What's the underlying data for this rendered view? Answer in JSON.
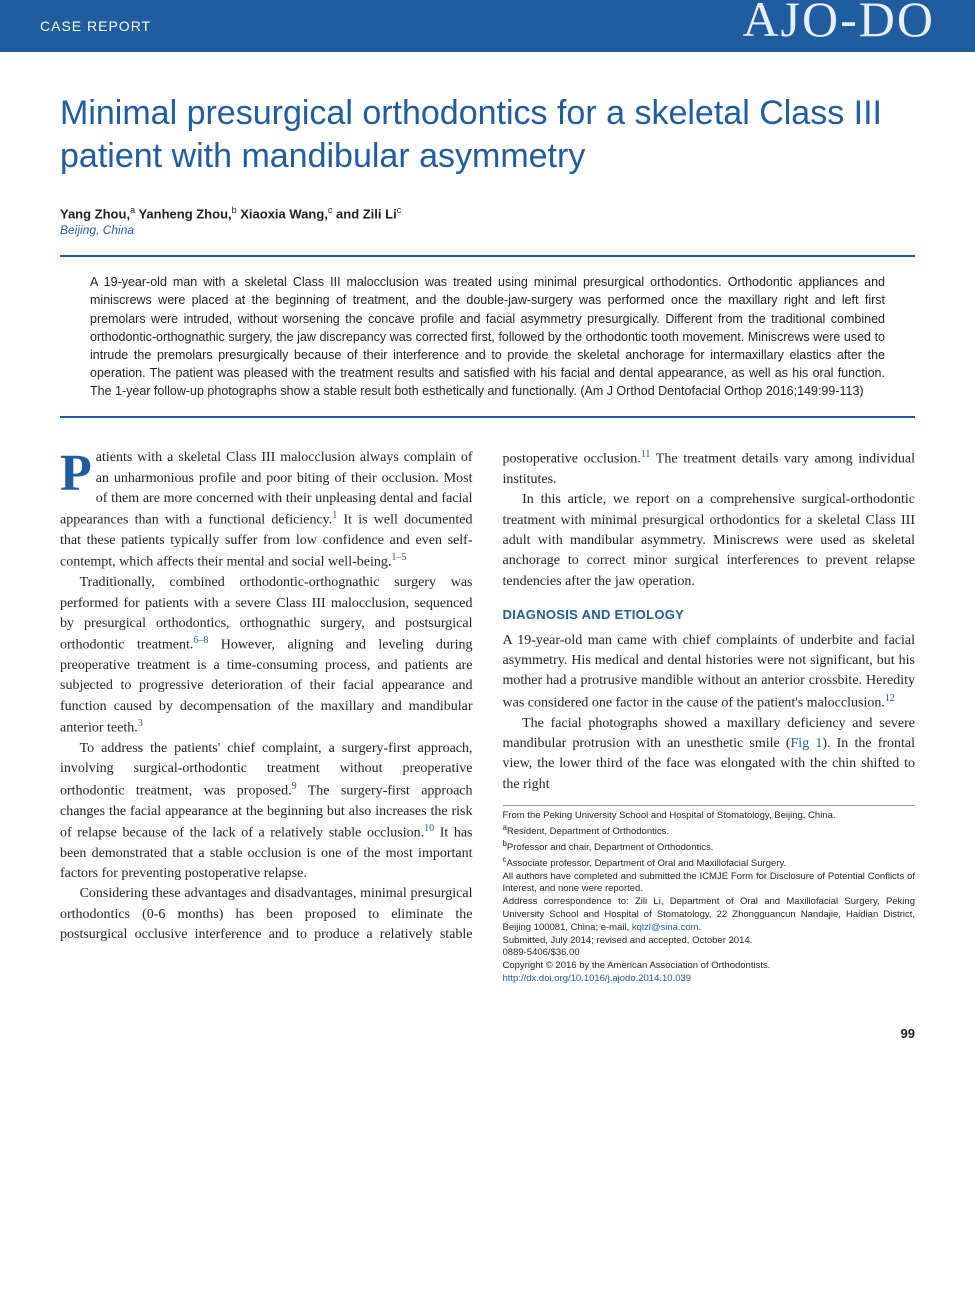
{
  "header": {
    "label": "CASE REPORT",
    "logo": "AJO-DO"
  },
  "title": "Minimal presurgical orthodontics for a skeletal Class III patient with mandibular asymmetry",
  "authors_html": "Yang Zhou,<sup>a</sup> Yanheng Zhou,<sup>b</sup> Xiaoxia Wang,<sup>c</sup> and Zili Li<sup>c</sup>",
  "location": "Beijing, China",
  "abstract": "A 19-year-old man with a skeletal Class III malocclusion was treated using minimal presurgical orthodontics. Orthodontic appliances and miniscrews were placed at the beginning of treatment, and the double-jaw-surgery was performed once the maxillary right and left first premolars were intruded, without worsening the concave profile and facial asymmetry presurgically. Different from the traditional combined orthodontic-orthognathic surgery, the jaw discrepancy was corrected first, followed by the orthodontic tooth movement. Miniscrews were used to intrude the premolars presurgically because of their interference and to provide the skeletal anchorage for intermaxillary elastics after the operation. The patient was pleased with the treatment results and satisfied with his facial and dental appearance, as well as his oral function. The 1-year follow-up photographs show a stable result both esthetically and functionally. (Am J Orthod Dentofacial Orthop 2016;149:99-113)",
  "body": {
    "p1_first_letter": "P",
    "p1_rest": "atients with a skeletal Class III malocclusion always complain of an unharmonious profile and poor biting of their occlusion. Most of them are more concerned with their unpleasing dental and facial appearances than with a functional deficiency.",
    "p1_ref1": "1",
    "p1_cont": " It is well documented that these patients typically suffer from low confidence and even self-contempt, which affects their mental and social well-being.",
    "p1_ref2": "1–5",
    "p2": "Traditionally, combined orthodontic-orthognathic surgery was performed for patients with a severe Class III malocclusion, sequenced by presurgical orthodontics, orthognathic surgery, and postsurgical orthodontic treatment.",
    "p2_ref1": "6–8",
    "p2_cont": " However, aligning and leveling during preoperative treatment is a time-consuming process, and patients are subjected to progressive deterioration of their facial appearance and function caused by decompensation of the maxillary and mandibular anterior teeth.",
    "p2_ref2": "3",
    "p3": "To address the patients' chief complaint, a surgery-first approach, involving surgical-orthodontic treatment without preoperative orthodontic treatment, was proposed.",
    "p3_ref1": "9",
    "p3_cont": " The surgery-first approach changes the facial appearance at the beginning but also increases the risk of relapse because of the lack of a relatively stable occlusion.",
    "p3_ref2": "10",
    "p3_cont2": " It has been demonstrated that a stable occlusion is one of the most important factors for preventing postoperative relapse.",
    "p4": "Considering these advantages and disadvantages, minimal presurgical orthodontics (0-6 months) has been proposed to eliminate the postsurgical occlusive interference and to produce a relatively stable postoperative occlusion.",
    "p4_ref1": "11",
    "p4_cont": " The treatment details vary among individual institutes.",
    "p5": "In this article, we report on a comprehensive surgical-orthodontic treatment with minimal presurgical orthodontics for a skeletal Class III adult with mandibular asymmetry. Miniscrews were used as skeletal anchorage to correct minor surgical interferences to prevent relapse tendencies after the jaw operation."
  },
  "section_heading": "DIAGNOSIS AND ETIOLOGY",
  "diagnosis": {
    "p1": "A 19-year-old man came with chief complaints of underbite and facial asymmetry. His medical and dental histories were not significant, but his mother had a protrusive mandible without an anterior crossbite. Heredity was considered one factor in the cause of the patient's malocclusion.",
    "p1_ref": "12",
    "p2_a": "The facial photographs showed a maxillary deficiency and severe mandibular protrusion with an unesthetic smile (",
    "p2_fig": "Fig 1",
    "p2_b": "). In the frontal view, the lower third of the face was elongated with the chin shifted to the right"
  },
  "footnotes": {
    "l1": "From the Peking University School and Hospital of Stomatology, Beijing, China.",
    "l2": "Resident, Department of Orthodontics.",
    "l2_sup": "a",
    "l3": "Professor and chair, Department of Orthodontics.",
    "l3_sup": "b",
    "l4": "Associate professor, Department of Oral and Maxillofacial Surgery.",
    "l4_sup": "c",
    "l5": "All authors have completed and submitted the ICMJE Form for Disclosure of Potential Conflicts of Interest, and none were reported.",
    "l6": "Address correspondence to: Zili Li, Department of Oral and Maxillofacial Surgery, Peking University School and Hospital of Stomatology, 22 Zhongguancun Nandajie, Haidian District, Beijing 100081, China; e-mail, ",
    "l6_email": "kqlzl@sina.com",
    "l6_end": ".",
    "l7": "Submitted, July 2014; revised and accepted, October 2014.",
    "l8": "0889-5406/$36.00",
    "l9": "Copyright © 2016 by the American Association of Orthodontists.",
    "l10": "http://dx.doi.org/10.1016/j.ajodo.2014.10.039"
  },
  "page_number": "99",
  "colors": {
    "primary_blue": "#1f5da0",
    "text": "#231f20",
    "background": "#ffffff"
  }
}
